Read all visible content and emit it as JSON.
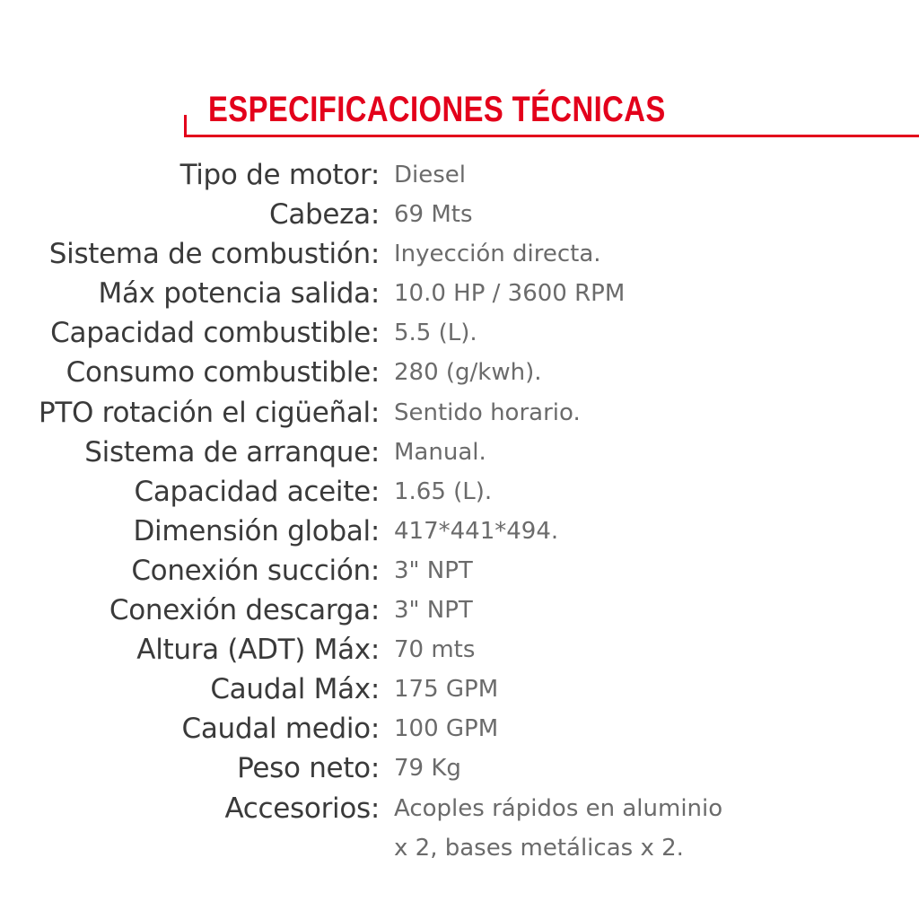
{
  "header": {
    "title": "ESPECIFICACIONES TÉCNICAS",
    "accent_color": "#e3001b"
  },
  "specs": [
    {
      "label": "Tipo de motor:",
      "value": "Diesel"
    },
    {
      "label": "Cabeza:",
      "value": "69 Mts"
    },
    {
      "label": "Sistema de combustión:",
      "value": "Inyección directa."
    },
    {
      "label": "Máx potencia salida:",
      "value": "10.0 HP / 3600 RPM"
    },
    {
      "label": "Capacidad combustible:",
      "value": "5.5 (L)."
    },
    {
      "label": "Consumo combustible:",
      "value": "280 (g/kwh)."
    },
    {
      "label": "PTO rotación el cigüeñal:",
      "value": "Sentido horario."
    },
    {
      "label": "Sistema de arranque:",
      "value": "Manual."
    },
    {
      "label": "Capacidad aceite:",
      "value": "1.65 (L)."
    },
    {
      "label": "Dimensión global:",
      "value": "417*441*494."
    },
    {
      "label": "Conexión succión:",
      "value": "3\" NPT"
    },
    {
      "label": "Conexión descarga:",
      "value": "3\" NPT"
    },
    {
      "label": "Altura (ADT) Máx:",
      "value": "70 mts"
    },
    {
      "label": "Caudal Máx:",
      "value": "175 GPM"
    },
    {
      "label": "Caudal medio:",
      "value": "100 GPM"
    },
    {
      "label": "Peso neto:",
      "value": "79 Kg"
    },
    {
      "label": "Accesorios:",
      "value": "Acoples rápidos en aluminio",
      "value2": "x 2, bases metálicas x 2."
    }
  ]
}
